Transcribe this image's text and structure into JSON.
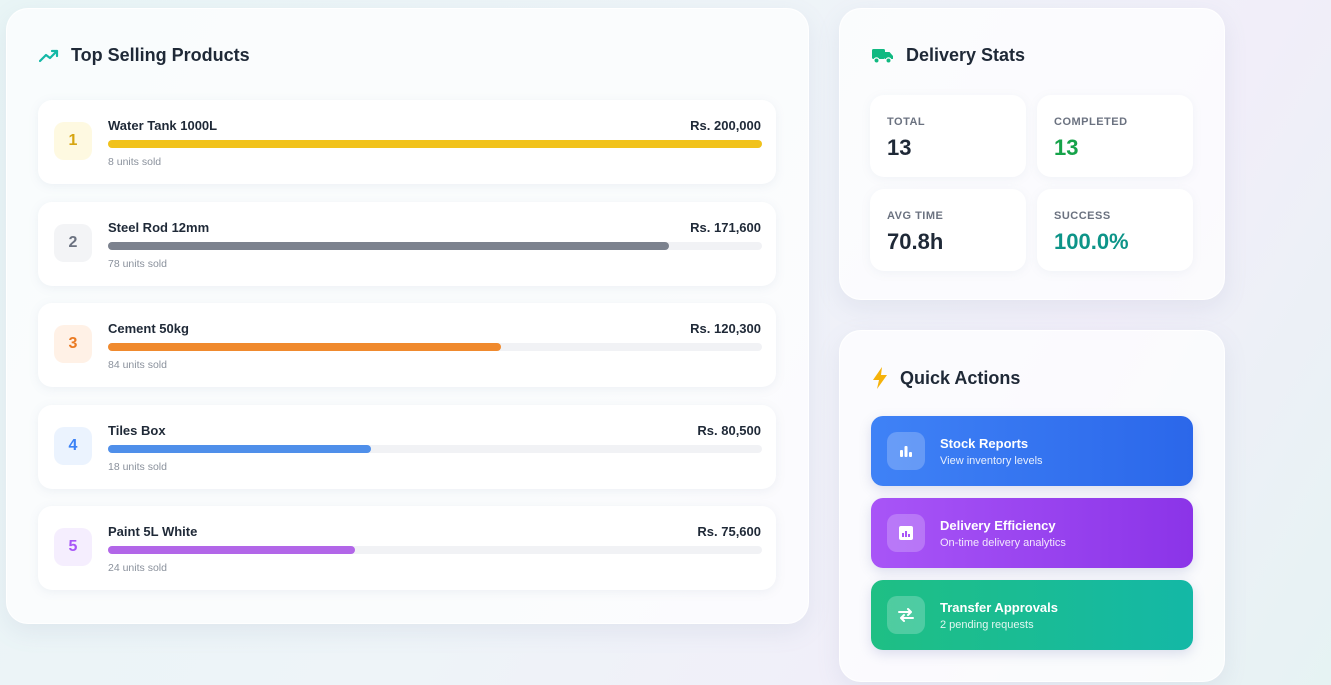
{
  "top_products": {
    "title": "Top Selling Products",
    "items": [
      {
        "rank": "1",
        "name": "Water Tank 1000L",
        "revenue": "Rs. 200,000",
        "units": "8 units sold",
        "share": 1.0,
        "bar_color": "#f1c21b",
        "badge_bg": "#fef9e1",
        "badge_color": "#d6a511"
      },
      {
        "rank": "2",
        "name": "Steel Rod 12mm",
        "revenue": "Rs. 171,600",
        "units": "78 units sold",
        "share": 0.858,
        "bar_color": "#7c828e",
        "badge_bg": "#f3f4f6",
        "badge_color": "#6b7280"
      },
      {
        "rank": "3",
        "name": "Cement 50kg",
        "revenue": "Rs. 120,300",
        "units": "84 units sold",
        "share": 0.6015,
        "bar_color": "#f08a2e",
        "badge_bg": "#fff1e6",
        "badge_color": "#ea7a22"
      },
      {
        "rank": "4",
        "name": "Tiles Box",
        "revenue": "Rs. 80,500",
        "units": "18 units sold",
        "share": 0.4025,
        "bar_color": "#4f8fea",
        "badge_bg": "#ebf3fe",
        "badge_color": "#3b82f6"
      },
      {
        "rank": "5",
        "name": "Paint 5L White",
        "revenue": "Rs. 75,600",
        "units": "24 units sold",
        "share": 0.378,
        "bar_color": "#b266e8",
        "badge_bg": "#f5eefe",
        "badge_color": "#a855f7"
      }
    ]
  },
  "delivery_stats": {
    "title": "Delivery Stats",
    "total_label": "TOTAL",
    "total_value": "13",
    "completed_label": "COMPLETED",
    "completed_value": "13",
    "avg_time_label": "AVG TIME",
    "avg_time_value": "70.8h",
    "success_label": "SUCCESS",
    "success_value": "100.0%",
    "completed_color": "#16a34a",
    "success_color": "#0d9488"
  },
  "quick_actions": {
    "title": "Quick Actions",
    "items": [
      {
        "title": "Stock Reports",
        "subtitle": "View inventory levels",
        "icon": "bar-chart-icon",
        "gradient_from": "#3f82f6",
        "gradient_to": "#2b67ea"
      },
      {
        "title": "Delivery Efficiency",
        "subtitle": "On-time delivery analytics",
        "icon": "analytics-icon",
        "gradient_from": "#a855f7",
        "gradient_to": "#8b34e8"
      },
      {
        "title": "Transfer Approvals",
        "subtitle": "2 pending requests",
        "icon": "transfer-arrows-icon",
        "gradient_from": "#1fbf84",
        "gradient_to": "#14b8a6"
      }
    ]
  },
  "colors": {
    "trend_icon": "#14b8a6",
    "truck_icon": "#10b981",
    "bolt_icon": "#f5b20b"
  }
}
